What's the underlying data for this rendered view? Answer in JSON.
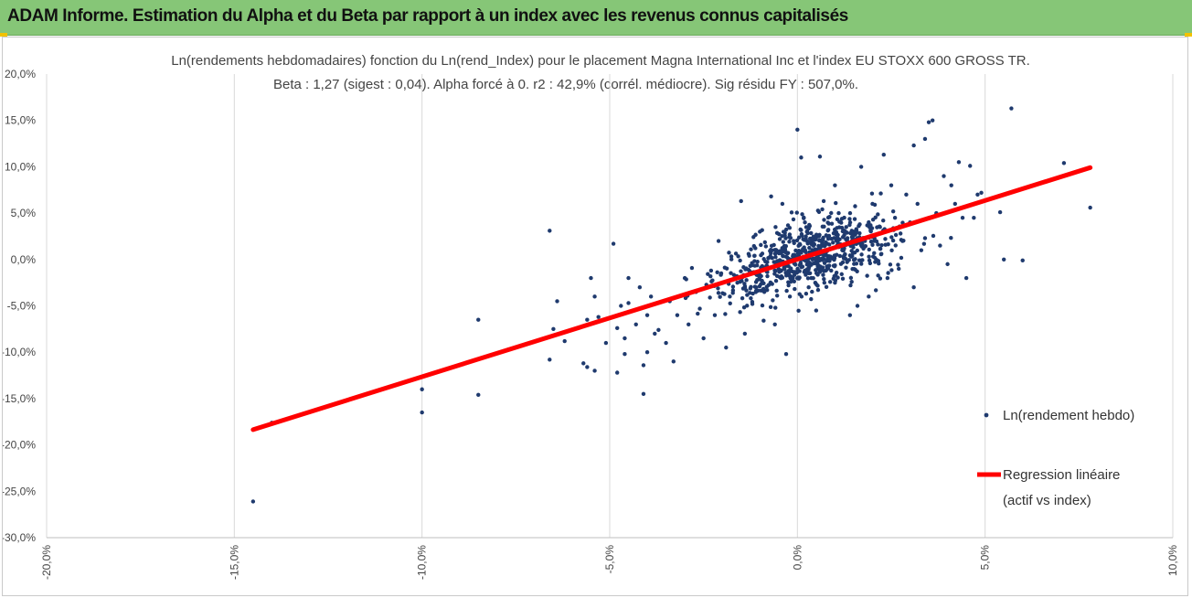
{
  "header": {
    "title": "ADAM Informe. Estimation du Alpha et du Beta par rapport à un index avec les revenus connus capitalisés"
  },
  "colors": {
    "header_bg": "#86c677",
    "points": "#1f3a6e",
    "regression": "#ff0000",
    "grid": "#d9d9d9"
  },
  "chart_data": {
    "type": "scatter",
    "title": "Ln(rendements hebdomadaires) fonction du Ln(rend_Index) pour le placement Magna International Inc et l'index EU STOXX 600 GROSS TR.",
    "subtitle": "Beta : 1,27 (sigest : 0,04).  Alpha forcé à 0. r2 : 42,9% (corrél. médiocre). Sig résidu FY : 507,0%.",
    "xlim": [
      -0.2,
      0.1
    ],
    "ylim": [
      -0.3,
      0.2
    ],
    "x_ticks": [
      -0.2,
      -0.15,
      -0.1,
      -0.05,
      0.0,
      0.05,
      0.1
    ],
    "x_tick_labels": [
      "-20,0%",
      "-15,0%",
      "-10,0%",
      "-5,0%",
      "0,0%",
      "5,0%",
      "10,0%"
    ],
    "y_ticks": [
      0.2,
      0.15,
      0.1,
      0.05,
      0.0,
      -0.05,
      -0.1,
      -0.15,
      -0.2,
      -0.25,
      -0.3
    ],
    "y_tick_labels": [
      "20,0%",
      "15,0%",
      "10,0%",
      "5,0%",
      "0,0%",
      "-5,0%",
      "-10,0%",
      "-15,0%",
      "-20,0%",
      "-25,0%",
      "-30,0%"
    ],
    "vertical_grid": true,
    "horizontal_grid": false,
    "legend_position": "right",
    "series": [
      {
        "name": "Ln(rendement hebdo)",
        "kind": "scatter",
        "points": [
          [
            -0.145,
            -0.261
          ],
          [
            -0.14,
            -0.176
          ],
          [
            -0.1,
            -0.165
          ],
          [
            -0.1,
            -0.14
          ],
          [
            -0.085,
            -0.146
          ],
          [
            -0.085,
            -0.065
          ],
          [
            -0.077,
            -0.097
          ],
          [
            -0.066,
            0.031
          ],
          [
            -0.066,
            -0.108
          ],
          [
            -0.065,
            -0.075
          ],
          [
            -0.064,
            -0.045
          ],
          [
            -0.062,
            -0.088
          ],
          [
            -0.057,
            -0.112
          ],
          [
            -0.056,
            -0.116
          ],
          [
            -0.056,
            -0.065
          ],
          [
            -0.055,
            -0.02
          ],
          [
            -0.054,
            -0.04
          ],
          [
            -0.053,
            -0.062
          ],
          [
            -0.054,
            -0.12
          ],
          [
            -0.051,
            -0.09
          ],
          [
            -0.048,
            -0.122
          ],
          [
            -0.047,
            -0.05
          ],
          [
            -0.046,
            -0.085
          ],
          [
            -0.048,
            -0.074
          ],
          [
            -0.049,
            0.017
          ],
          [
            -0.046,
            -0.102
          ],
          [
            -0.045,
            -0.02
          ],
          [
            -0.045,
            -0.047
          ],
          [
            -0.043,
            -0.07
          ],
          [
            -0.042,
            -0.03
          ],
          [
            -0.041,
            -0.145
          ],
          [
            -0.041,
            -0.114
          ],
          [
            -0.04,
            -0.1
          ],
          [
            -0.04,
            -0.06
          ],
          [
            -0.039,
            -0.04
          ],
          [
            -0.038,
            -0.08
          ],
          [
            -0.037,
            -0.076
          ],
          [
            -0.035,
            -0.09
          ],
          [
            -0.034,
            -0.045
          ],
          [
            -0.033,
            -0.11
          ],
          [
            -0.032,
            -0.06
          ],
          [
            -0.03,
            -0.02
          ],
          [
            -0.029,
            -0.07
          ],
          [
            -0.027,
            -0.035
          ],
          [
            -0.026,
            -0.053
          ],
          [
            -0.025,
            -0.085
          ],
          [
            -0.023,
            -0.012
          ],
          [
            -0.022,
            -0.06
          ],
          [
            -0.021,
            0.02
          ],
          [
            -0.019,
            -0.095
          ],
          [
            -0.018,
            -0.04
          ],
          [
            -0.016,
            -0.025
          ],
          [
            -0.015,
            0.063
          ],
          [
            -0.014,
            -0.08
          ],
          [
            -0.013,
            0.006
          ],
          [
            -0.012,
            -0.048
          ],
          [
            -0.011,
            -0.03
          ],
          [
            -0.01,
            0.03
          ],
          [
            -0.009,
            -0.066
          ],
          [
            -0.008,
            -0.018
          ],
          [
            -0.007,
            0.068
          ],
          [
            -0.006,
            -0.07
          ],
          [
            -0.005,
            -0.01
          ],
          [
            -0.004,
            0.06
          ],
          [
            -0.003,
            -0.102
          ],
          [
            -0.002,
            -0.04
          ],
          [
            -0.001,
            0.02
          ],
          [
            0.0,
            0.14
          ],
          [
            0.0,
            -0.02
          ],
          [
            0.001,
            0.11
          ],
          [
            0.002,
            0.04
          ],
          [
            0.003,
            -0.03
          ],
          [
            0.004,
            0.0
          ],
          [
            0.005,
            0.01
          ],
          [
            0.005,
            -0.055
          ],
          [
            0.006,
            0.111
          ],
          [
            0.007,
            0.063
          ],
          [
            0.008,
            0.025
          ],
          [
            0.009,
            -0.012
          ],
          [
            0.01,
            0.08
          ],
          [
            0.01,
            -0.025
          ],
          [
            0.011,
            0.05
          ],
          [
            0.012,
            0.01
          ],
          [
            0.013,
            0.035
          ],
          [
            0.014,
            -0.06
          ],
          [
            0.015,
            0.03
          ],
          [
            0.016,
            -0.05
          ],
          [
            0.017,
            0.1
          ],
          [
            0.018,
            0.02
          ],
          [
            0.019,
            -0.04
          ],
          [
            0.02,
            0.06
          ],
          [
            0.021,
            0.0
          ],
          [
            0.022,
            0.035
          ],
          [
            0.023,
            0.113
          ],
          [
            0.024,
            -0.02
          ],
          [
            0.025,
            0.08
          ],
          [
            0.026,
            0.045
          ],
          [
            0.027,
            -0.01
          ],
          [
            0.028,
            0.02
          ],
          [
            0.029,
            0.07
          ],
          [
            0.03,
            0.04
          ],
          [
            0.031,
            -0.03
          ],
          [
            0.032,
            0.06
          ],
          [
            0.033,
            0.01
          ],
          [
            0.034,
            0.023
          ],
          [
            0.035,
            0.148
          ],
          [
            0.036,
            0.15
          ],
          [
            0.034,
            0.13
          ],
          [
            0.031,
            0.123
          ],
          [
            0.037,
            0.05
          ],
          [
            0.038,
            0.015
          ],
          [
            0.039,
            0.09
          ],
          [
            0.04,
            -0.005
          ],
          [
            0.041,
            0.08
          ],
          [
            0.042,
            0.06
          ],
          [
            0.043,
            0.105
          ],
          [
            0.044,
            0.045
          ],
          [
            0.045,
            -0.02
          ],
          [
            0.046,
            0.101
          ],
          [
            0.047,
            0.045
          ],
          [
            0.048,
            0.07
          ],
          [
            0.049,
            0.072
          ],
          [
            0.054,
            0.051
          ],
          [
            0.055,
            0.0
          ],
          [
            0.057,
            0.163
          ],
          [
            0.06,
            -0.001
          ],
          [
            0.071,
            0.104
          ],
          [
            0.078,
            0.056
          ]
        ]
      },
      {
        "name": "Regression linéaire (actif vs index)",
        "kind": "line",
        "points": [
          [
            -0.145,
            -0.1835
          ],
          [
            0.078,
            0.0991
          ]
        ]
      }
    ],
    "legend": [
      {
        "label": "Ln(rendement hebdo)"
      },
      {
        "label_line1": "Regression linéaire",
        "label_line2": "(actif vs index)"
      }
    ]
  }
}
